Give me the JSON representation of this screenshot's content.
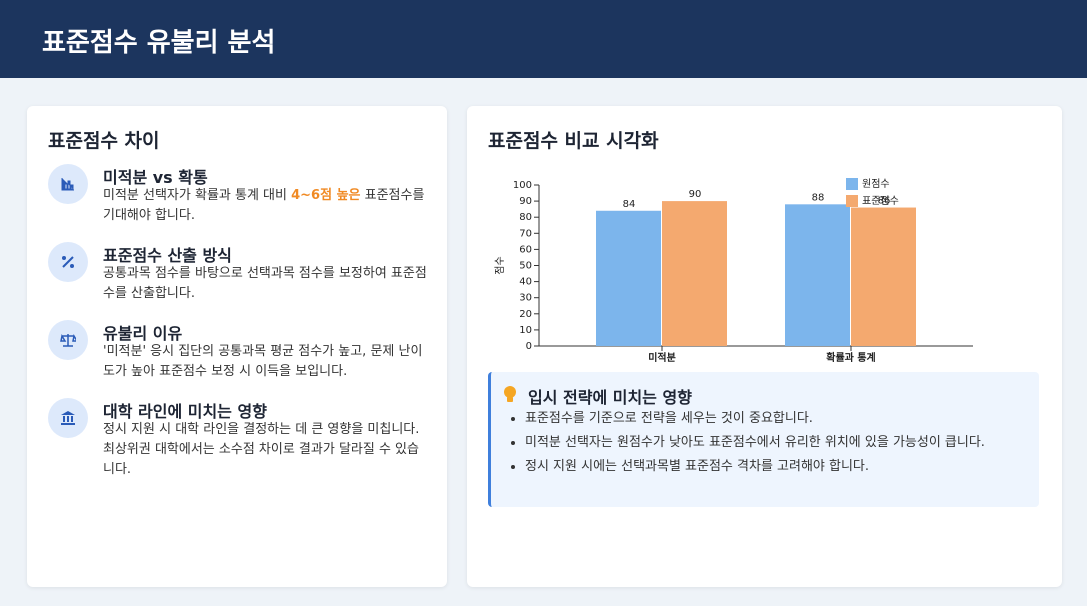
{
  "header": {
    "title": "표준점수 유불리 분석"
  },
  "left": {
    "title": "표준점수 차이",
    "items": [
      {
        "title": "미적분 vs 확통",
        "desc": [
          "미적분 선택자가 확률과 통계 대비 ",
          "4~6점 높은",
          " 표준점수를 기대해야 합니다."
        ]
      },
      {
        "title": "표준점수 산출 방식",
        "desc": [
          "공통과목 점수를 바탕으로 선택과목 점수를 보정하여 표준점수를 산출합니다."
        ]
      },
      {
        "title": "유불리 이유",
        "desc": [
          "'미적분' 응시 집단의 공통과목 평균 점수가 높고, 문제 난이도가 높아 표준점수 보정 시 이득을 보입니다."
        ]
      },
      {
        "title": "대학 라인에 미치는 영향",
        "desc": [
          "정시 지원 시 대학 라인을 결정하는 데 큰 영향을 미칩니다. 최상위권 대학에서는 소수점 차이로 결과가 달라질 수 있습니다."
        ]
      }
    ]
  },
  "right": {
    "title": "표준점수 비교 시각화",
    "insight": {
      "title": "입시 전략에 미치는 영향",
      "bullets": [
        "표준점수를 기준으로 전략을 세우는 것이 중요합니다.",
        "미적분 선택자는 원점수가 낮아도 표준점수에서 유리한 위치에 있을 가능성이 큽니다.",
        "정시 지원 시에는 선택과목별 표준점수 격차를 고려해야 합니다."
      ]
    }
  },
  "chart_data": {
    "type": "bar",
    "y_label": "점수",
    "categories": [
      "미적분",
      "확률과 통계"
    ],
    "series": [
      {
        "name": "원점수",
        "color": "#7cb5ec",
        "values": [
          84,
          88
        ]
      },
      {
        "name": "표준점수",
        "color": "#f4a96f",
        "values": [
          90,
          86
        ]
      }
    ],
    "ylim": [
      0,
      100
    ],
    "yticks": [
      0,
      10,
      20,
      30,
      40,
      50,
      60,
      70,
      80,
      90,
      100
    ]
  }
}
